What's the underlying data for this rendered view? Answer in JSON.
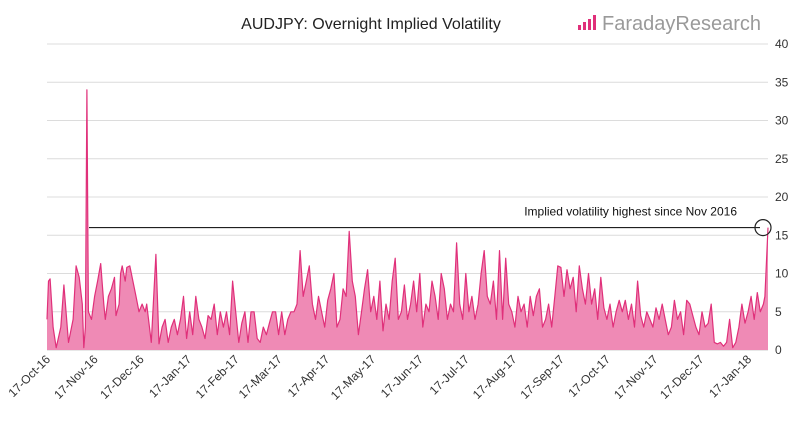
{
  "logo": {
    "name_part1": "Faraday",
    "name_part2": "Research",
    "brand_color": "#e0307a",
    "text_color": "#9a9a9a"
  },
  "chart_data": {
    "type": "area",
    "title": "AUDJPY: Overnight Implied Volatility",
    "xlabel": "",
    "ylabel": "",
    "ylim": [
      0,
      40
    ],
    "y_ticks": [
      0,
      5,
      10,
      15,
      20,
      25,
      30,
      35,
      40
    ],
    "y_axis_position": "right",
    "grid": true,
    "line_color": "#e0307a",
    "fill_color": "#ef8ab5",
    "x_tick_labels": [
      "17-Oct-16",
      "17-Nov-16",
      "17-Dec-16",
      "17-Jan-17",
      "17-Feb-17",
      "17-Mar-17",
      "17-Apr-17",
      "17-May-17",
      "17-Jun-17",
      "17-Jul-17",
      "17-Aug-17",
      "17-Sep-17",
      "17-Oct-17",
      "17-Nov-17",
      "17-Dec-17",
      "17-Jan-18"
    ],
    "x_start": "2016-10-17",
    "x_end": "2018-01-30",
    "series": [
      {
        "values": [
          [
            "2016-10-17",
            4
          ],
          [
            "2016-10-18",
            9
          ],
          [
            "2016-10-19",
            9.3
          ],
          [
            "2016-10-21",
            3
          ],
          [
            "2016-10-23",
            0.3
          ],
          [
            "2016-10-26",
            3
          ],
          [
            "2016-10-28",
            8.5
          ],
          [
            "2016-10-31",
            1
          ],
          [
            "2016-11-03",
            4
          ],
          [
            "2016-11-05",
            11
          ],
          [
            "2016-11-07",
            9.5
          ],
          [
            "2016-11-09",
            6
          ],
          [
            "2016-11-10",
            0.3
          ],
          [
            "2016-11-11",
            3
          ],
          [
            "2016-11-12",
            34
          ],
          [
            "2016-11-13",
            5
          ],
          [
            "2016-11-15",
            4
          ],
          [
            "2016-11-17",
            7
          ],
          [
            "2016-11-19",
            9
          ],
          [
            "2016-11-21",
            11.3
          ],
          [
            "2016-11-23",
            6
          ],
          [
            "2016-11-24",
            4
          ],
          [
            "2016-11-26",
            7
          ],
          [
            "2016-11-28",
            8
          ],
          [
            "2016-11-30",
            9.5
          ],
          [
            "2016-12-01",
            4.5
          ],
          [
            "2016-12-03",
            6
          ],
          [
            "2016-12-04",
            10
          ],
          [
            "2016-12-05",
            11
          ],
          [
            "2016-12-07",
            9
          ],
          [
            "2016-12-08",
            10.8
          ],
          [
            "2016-12-10",
            11
          ],
          [
            "2016-12-12",
            9
          ],
          [
            "2016-12-14",
            7
          ],
          [
            "2016-12-16",
            5
          ],
          [
            "2016-12-18",
            6
          ],
          [
            "2016-12-20",
            5
          ],
          [
            "2016-12-21",
            6
          ],
          [
            "2016-12-24",
            1
          ],
          [
            "2016-12-27",
            12.5
          ],
          [
            "2016-12-29",
            0.8
          ],
          [
            "2016-12-31",
            3
          ],
          [
            "2017-01-02",
            4
          ],
          [
            "2017-01-04",
            1
          ],
          [
            "2017-01-06",
            3
          ],
          [
            "2017-01-08",
            4
          ],
          [
            "2017-01-10",
            2
          ],
          [
            "2017-01-12",
            4
          ],
          [
            "2017-01-14",
            7
          ],
          [
            "2017-01-16",
            1.5
          ],
          [
            "2017-01-18",
            5
          ],
          [
            "2017-01-20",
            2
          ],
          [
            "2017-01-22",
            7
          ],
          [
            "2017-01-24",
            4
          ],
          [
            "2017-01-26",
            3
          ],
          [
            "2017-01-28",
            1.5
          ],
          [
            "2017-01-30",
            4.5
          ],
          [
            "2017-02-01",
            4
          ],
          [
            "2017-02-03",
            6
          ],
          [
            "2017-02-05",
            2
          ],
          [
            "2017-02-07",
            5
          ],
          [
            "2017-02-09",
            3
          ],
          [
            "2017-02-11",
            5
          ],
          [
            "2017-02-13",
            2
          ],
          [
            "2017-02-15",
            9
          ],
          [
            "2017-02-17",
            5
          ],
          [
            "2017-02-19",
            1
          ],
          [
            "2017-02-21",
            3.5
          ],
          [
            "2017-02-23",
            5
          ],
          [
            "2017-02-25",
            1
          ],
          [
            "2017-02-27",
            5
          ],
          [
            "2017-03-01",
            5
          ],
          [
            "2017-03-03",
            1.5
          ],
          [
            "2017-03-05",
            1
          ],
          [
            "2017-03-07",
            3
          ],
          [
            "2017-03-09",
            2
          ],
          [
            "2017-03-11",
            3.5
          ],
          [
            "2017-03-13",
            5
          ],
          [
            "2017-03-15",
            5
          ],
          [
            "2017-03-17",
            2
          ],
          [
            "2017-03-19",
            5
          ],
          [
            "2017-03-21",
            2
          ],
          [
            "2017-03-23",
            4
          ],
          [
            "2017-03-25",
            5
          ],
          [
            "2017-03-27",
            5
          ],
          [
            "2017-03-29",
            6
          ],
          [
            "2017-03-31",
            13
          ],
          [
            "2017-04-02",
            7
          ],
          [
            "2017-04-04",
            9
          ],
          [
            "2017-04-06",
            11
          ],
          [
            "2017-04-08",
            6
          ],
          [
            "2017-04-10",
            4
          ],
          [
            "2017-04-12",
            7
          ],
          [
            "2017-04-14",
            5
          ],
          [
            "2017-04-16",
            3
          ],
          [
            "2017-04-18",
            6.5
          ],
          [
            "2017-04-20",
            8
          ],
          [
            "2017-04-22",
            10
          ],
          [
            "2017-04-24",
            3
          ],
          [
            "2017-04-26",
            4
          ],
          [
            "2017-04-28",
            8
          ],
          [
            "2017-04-30",
            7
          ],
          [
            "2017-05-02",
            15.5
          ],
          [
            "2017-05-04",
            9
          ],
          [
            "2017-05-06",
            7
          ],
          [
            "2017-05-08",
            2
          ],
          [
            "2017-05-10",
            5
          ],
          [
            "2017-05-12",
            8
          ],
          [
            "2017-05-14",
            10.5
          ],
          [
            "2017-05-16",
            5
          ],
          [
            "2017-05-18",
            7
          ],
          [
            "2017-05-20",
            4
          ],
          [
            "2017-05-22",
            9
          ],
          [
            "2017-05-24",
            2.5
          ],
          [
            "2017-05-26",
            6
          ],
          [
            "2017-05-28",
            4
          ],
          [
            "2017-05-30",
            9
          ],
          [
            "2017-06-01",
            12
          ],
          [
            "2017-06-03",
            4
          ],
          [
            "2017-06-05",
            5
          ],
          [
            "2017-06-07",
            8.5
          ],
          [
            "2017-06-09",
            4
          ],
          [
            "2017-06-11",
            6
          ],
          [
            "2017-06-13",
            9
          ],
          [
            "2017-06-15",
            5
          ],
          [
            "2017-06-17",
            10
          ],
          [
            "2017-06-19",
            3
          ],
          [
            "2017-06-21",
            6
          ],
          [
            "2017-06-23",
            5
          ],
          [
            "2017-06-25",
            9
          ],
          [
            "2017-06-27",
            7
          ],
          [
            "2017-06-29",
            4
          ],
          [
            "2017-07-01",
            10
          ],
          [
            "2017-07-03",
            8
          ],
          [
            "2017-07-05",
            4
          ],
          [
            "2017-07-07",
            6
          ],
          [
            "2017-07-09",
            5
          ],
          [
            "2017-07-11",
            14
          ],
          [
            "2017-07-13",
            6
          ],
          [
            "2017-07-15",
            4
          ],
          [
            "2017-07-17",
            10
          ],
          [
            "2017-07-19",
            5
          ],
          [
            "2017-07-21",
            7
          ],
          [
            "2017-07-23",
            4
          ],
          [
            "2017-07-25",
            6
          ],
          [
            "2017-07-27",
            10
          ],
          [
            "2017-07-29",
            13
          ],
          [
            "2017-07-31",
            7
          ],
          [
            "2017-08-02",
            6
          ],
          [
            "2017-08-04",
            9
          ],
          [
            "2017-08-06",
            4
          ],
          [
            "2017-08-08",
            13
          ],
          [
            "2017-08-10",
            4
          ],
          [
            "2017-08-12",
            12
          ],
          [
            "2017-08-14",
            6
          ],
          [
            "2017-08-16",
            5
          ],
          [
            "2017-08-18",
            3
          ],
          [
            "2017-08-20",
            7
          ],
          [
            "2017-08-22",
            5
          ],
          [
            "2017-08-24",
            6
          ],
          [
            "2017-08-26",
            3
          ],
          [
            "2017-08-28",
            7
          ],
          [
            "2017-08-30",
            4.5
          ],
          [
            "2017-09-01",
            7
          ],
          [
            "2017-09-03",
            8
          ],
          [
            "2017-09-05",
            3
          ],
          [
            "2017-09-07",
            4
          ],
          [
            "2017-09-09",
            6
          ],
          [
            "2017-09-11",
            3
          ],
          [
            "2017-09-13",
            7
          ],
          [
            "2017-09-15",
            11
          ],
          [
            "2017-09-17",
            10.8
          ],
          [
            "2017-09-19",
            7
          ],
          [
            "2017-09-21",
            10.5
          ],
          [
            "2017-09-23",
            8
          ],
          [
            "2017-09-25",
            9.5
          ],
          [
            "2017-09-27",
            5
          ],
          [
            "2017-09-29",
            11
          ],
          [
            "2017-10-01",
            8
          ],
          [
            "2017-10-03",
            6
          ],
          [
            "2017-10-05",
            10
          ],
          [
            "2017-10-07",
            6
          ],
          [
            "2017-10-09",
            8
          ],
          [
            "2017-10-11",
            4
          ],
          [
            "2017-10-13",
            9.5
          ],
          [
            "2017-10-15",
            5.5
          ],
          [
            "2017-10-17",
            4
          ],
          [
            "2017-10-19",
            6
          ],
          [
            "2017-10-21",
            3
          ],
          [
            "2017-10-23",
            5
          ],
          [
            "2017-10-25",
            6.5
          ],
          [
            "2017-10-27",
            5
          ],
          [
            "2017-10-29",
            6.5
          ],
          [
            "2017-10-31",
            4
          ],
          [
            "2017-11-02",
            6
          ],
          [
            "2017-11-04",
            3
          ],
          [
            "2017-11-06",
            9
          ],
          [
            "2017-11-08",
            4.5
          ],
          [
            "2017-11-10",
            3
          ],
          [
            "2017-11-12",
            5
          ],
          [
            "2017-11-14",
            4
          ],
          [
            "2017-11-16",
            3
          ],
          [
            "2017-11-18",
            5.5
          ],
          [
            "2017-11-20",
            4
          ],
          [
            "2017-11-22",
            6
          ],
          [
            "2017-11-24",
            4
          ],
          [
            "2017-11-26",
            2
          ],
          [
            "2017-11-28",
            3
          ],
          [
            "2017-11-30",
            6.5
          ],
          [
            "2017-12-02",
            4
          ],
          [
            "2017-12-04",
            5
          ],
          [
            "2017-12-06",
            2
          ],
          [
            "2017-12-08",
            6.5
          ],
          [
            "2017-12-10",
            6
          ],
          [
            "2017-12-12",
            4.5
          ],
          [
            "2017-12-14",
            3
          ],
          [
            "2017-12-16",
            2
          ],
          [
            "2017-12-18",
            5
          ],
          [
            "2017-12-20",
            3
          ],
          [
            "2017-12-22",
            3.5
          ],
          [
            "2017-12-24",
            6
          ],
          [
            "2017-12-26",
            1
          ],
          [
            "2017-12-28",
            0.8
          ],
          [
            "2017-12-30",
            1
          ],
          [
            "2018-01-01",
            0.5
          ],
          [
            "2018-01-03",
            1
          ],
          [
            "2018-01-05",
            4
          ],
          [
            "2018-01-07",
            0.3
          ],
          [
            "2018-01-09",
            1
          ],
          [
            "2018-01-11",
            3
          ],
          [
            "2018-01-13",
            6
          ],
          [
            "2018-01-15",
            3.5
          ],
          [
            "2018-01-17",
            5
          ],
          [
            "2018-01-19",
            7
          ],
          [
            "2018-01-21",
            4
          ],
          [
            "2018-01-23",
            7.5
          ],
          [
            "2018-01-25",
            5
          ],
          [
            "2018-01-27",
            6
          ],
          [
            "2018-01-28",
            7
          ],
          [
            "2018-01-30",
            16
          ]
        ]
      }
    ],
    "reference_line": {
      "y": 16
    },
    "annotation": "Implied volatility highest since Nov 2016"
  }
}
